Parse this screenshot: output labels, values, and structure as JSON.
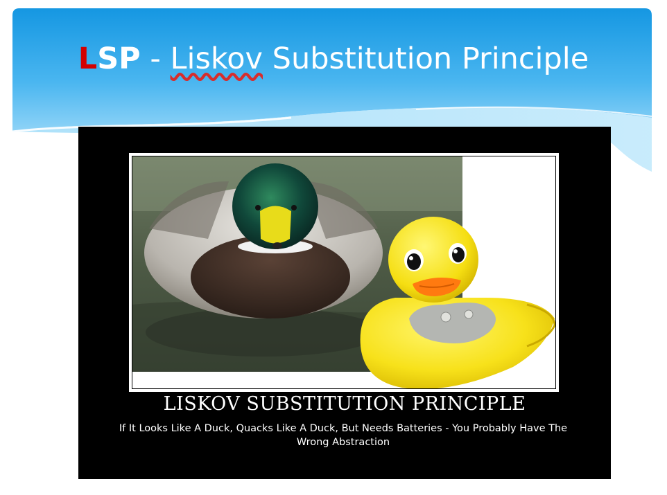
{
  "slide": {
    "title_first_letter": "L",
    "title_rest_abbr": "SP",
    "title_separator": " - ",
    "title_term": "Liskov",
    "title_rest": " Substitution Principle"
  },
  "poster": {
    "heading": "LISKOV SUBSTITUTION PRINCIPLE",
    "subtitle": "If It Looks Like A Duck, Quacks Like A Duck, But Needs Batteries - You Probably Have The Wrong Abstraction",
    "image_subjects": [
      "mallard-duck",
      "rubber-duck"
    ]
  },
  "colors": {
    "banner_top": "#1a9fe6",
    "banner_bottom": "#8dd4f8",
    "title_accent": "#d40000",
    "poster_bg": "#000000"
  }
}
